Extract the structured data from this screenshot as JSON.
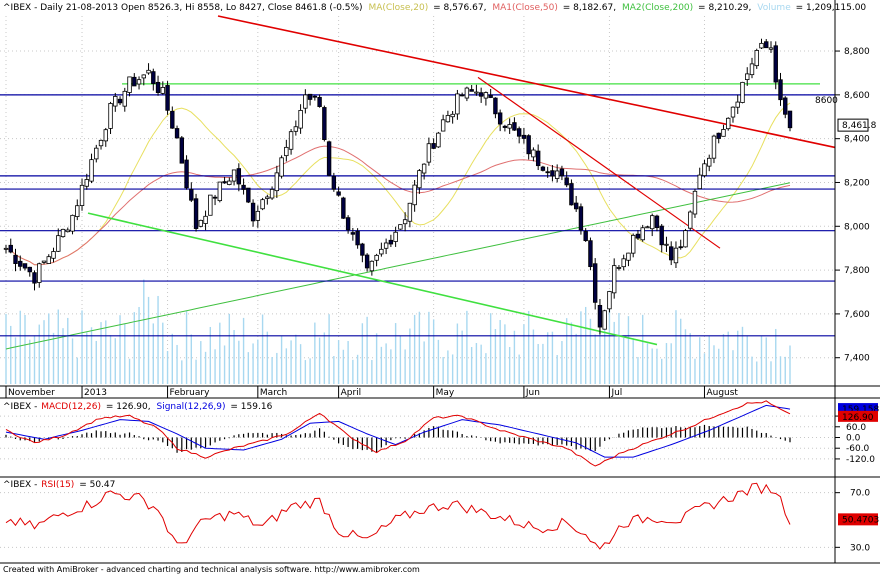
{
  "header": {
    "symbol": "^IBEX - Daily 21-08-2013 Open 8526.3, Hi 8558, Lo 8427, Close 8461.8 (-0.5%)",
    "ma": "MA(Close,20)",
    "ma_val": "= 8,576.67,",
    "ma1": "MA1(Close,50)",
    "ma1_val": "= 8,182.67,",
    "ma2": "MA2(Close,200)",
    "ma2_val": "= 8,210.29,",
    "volume": "Volume",
    "volume_val": "= 1,209,115.00"
  },
  "macd_header": {
    "sym": "^IBEX -",
    "macd": "MACD(12,26)",
    "macd_val": "= 126.90,",
    "signal": "Signal(12,26,9)",
    "signal_val": "= 159.16"
  },
  "rsi_header": {
    "sym": "^IBEX -",
    "rsi": "RSI(15)",
    "rsi_val": "= 50.47"
  },
  "footer": "Created with AmiBroker - advanced charting and technical analysis software. http://www.amibroker.com",
  "colors": {
    "up": "#ffffff",
    "down": "#000040",
    "ma20": "#e8e060",
    "ma50": "#e07070",
    "ma200": "#40c040",
    "volume": "#a8d8f0",
    "hline": "#0000a0",
    "trend_red": "#e00000",
    "trend_green": "#40e040",
    "macd": "#e00000",
    "signal": "#0000e0",
    "rsi": "#e00000"
  },
  "chart_data": [
    {
      "type": "candlestick",
      "title": "^IBEX - Daily 21-08-2013",
      "x_labels": [
        "November",
        "2013",
        "February",
        "March",
        "April",
        "May",
        "Jun",
        "Jul",
        "August"
      ],
      "ylim": [
        7280,
        8960
      ],
      "yticks": [
        7400,
        7600,
        7800,
        8000,
        8200,
        8400,
        8600,
        8800
      ],
      "last_close": "8,461.8",
      "level_label": "8600",
      "horizontal_levels": [
        8600,
        8230,
        8170,
        7980,
        7750,
        7500
      ],
      "green_level": 8650,
      "waypoints": [
        [
          0,
          7900
        ],
        [
          6,
          7770
        ],
        [
          10,
          7900
        ],
        [
          14,
          8050
        ],
        [
          18,
          8300
        ],
        [
          22,
          8530
        ],
        [
          26,
          8650
        ],
        [
          30,
          8700
        ],
        [
          33,
          8600
        ],
        [
          36,
          8400
        ],
        [
          40,
          8000
        ],
        [
          44,
          8150
        ],
        [
          48,
          8250
        ],
        [
          52,
          8050
        ],
        [
          56,
          8200
        ],
        [
          60,
          8400
        ],
        [
          63,
          8600
        ],
        [
          66,
          8550
        ],
        [
          68,
          8250
        ],
        [
          72,
          8000
        ],
        [
          76,
          7780
        ],
        [
          80,
          7920
        ],
        [
          84,
          8050
        ],
        [
          88,
          8300
        ],
        [
          92,
          8480
        ],
        [
          96,
          8600
        ],
        [
          100,
          8620
        ],
        [
          104,
          8500
        ],
        [
          108,
          8400
        ],
        [
          112,
          8300
        ],
        [
          116,
          8250
        ],
        [
          120,
          8080
        ],
        [
          122,
          7950
        ],
        [
          125,
          7550
        ],
        [
          128,
          7800
        ],
        [
          132,
          7950
        ],
        [
          136,
          8050
        ],
        [
          140,
          7850
        ],
        [
          143,
          7950
        ],
        [
          146,
          8250
        ],
        [
          150,
          8430
        ],
        [
          154,
          8600
        ],
        [
          158,
          8800
        ],
        [
          161,
          8820
        ],
        [
          163,
          8550
        ],
        [
          165,
          8450
        ]
      ],
      "volume_range": [
        0,
        2000000
      ]
    },
    {
      "type": "line",
      "title": "MACD(12,26)",
      "ylim": [
        -210,
        210
      ],
      "yticks": [
        -120.0,
        -60.0,
        0.0,
        60.0,
        120.0
      ],
      "series": [
        {
          "name": "MACD(12,26)",
          "value_label": "126.90",
          "waypoints": [
            [
              0,
              40
            ],
            [
              6,
              -30
            ],
            [
              12,
              10
            ],
            [
              20,
              110
            ],
            [
              26,
              120
            ],
            [
              32,
              50
            ],
            [
              36,
              -60
            ],
            [
              42,
              -110
            ],
            [
              48,
              -60
            ],
            [
              54,
              -20
            ],
            [
              60,
              30
            ],
            [
              66,
              140
            ],
            [
              72,
              10
            ],
            [
              78,
              -80
            ],
            [
              84,
              -20
            ],
            [
              90,
              110
            ],
            [
              96,
              120
            ],
            [
              104,
              40
            ],
            [
              112,
              -20
            ],
            [
              118,
              -60
            ],
            [
              124,
              -160
            ],
            [
              130,
              -80
            ],
            [
              136,
              -20
            ],
            [
              144,
              60
            ],
            [
              150,
              130
            ],
            [
              156,
              190
            ],
            [
              160,
              200
            ],
            [
              165,
              126.9
            ]
          ]
        },
        {
          "name": "Signal(12,26,9)",
          "value_label": "159.158",
          "waypoints": [
            [
              0,
              30
            ],
            [
              8,
              -10
            ],
            [
              16,
              40
            ],
            [
              24,
              100
            ],
            [
              30,
              90
            ],
            [
              36,
              20
            ],
            [
              42,
              -60
            ],
            [
              50,
              -70
            ],
            [
              58,
              -10
            ],
            [
              64,
              80
            ],
            [
              70,
              90
            ],
            [
              76,
              20
            ],
            [
              82,
              -40
            ],
            [
              88,
              30
            ],
            [
              96,
              100
            ],
            [
              104,
              70
            ],
            [
              112,
              20
            ],
            [
              120,
              -30
            ],
            [
              126,
              -110
            ],
            [
              132,
              -110
            ],
            [
              140,
              -40
            ],
            [
              148,
              40
            ],
            [
              154,
              110
            ],
            [
              160,
              180
            ],
            [
              165,
              159.16
            ]
          ]
        }
      ]
    },
    {
      "type": "line",
      "title": "RSI(15)",
      "ylim": [
        20,
        80
      ],
      "yticks": [
        30.0,
        70.0
      ],
      "series": [
        {
          "name": "RSI(15)",
          "value_label": "50.4703",
          "waypoints": [
            [
              0,
              50
            ],
            [
              6,
              45
            ],
            [
              12,
              55
            ],
            [
              18,
              62
            ],
            [
              22,
              70
            ],
            [
              28,
              66
            ],
            [
              32,
              58
            ],
            [
              36,
              30
            ],
            [
              42,
              50
            ],
            [
              48,
              55
            ],
            [
              54,
              45
            ],
            [
              60,
              60
            ],
            [
              66,
              64
            ],
            [
              70,
              42
            ],
            [
              76,
              35
            ],
            [
              82,
              50
            ],
            [
              88,
              58
            ],
            [
              94,
              62
            ],
            [
              100,
              56
            ],
            [
              106,
              50
            ],
            [
              112,
              44
            ],
            [
              118,
              48
            ],
            [
              122,
              40
            ],
            [
              125,
              28
            ],
            [
              130,
              48
            ],
            [
              136,
              52
            ],
            [
              142,
              50
            ],
            [
              146,
              58
            ],
            [
              152,
              66
            ],
            [
              158,
              74
            ],
            [
              162,
              72
            ],
            [
              165,
              50.47
            ]
          ]
        }
      ]
    }
  ]
}
